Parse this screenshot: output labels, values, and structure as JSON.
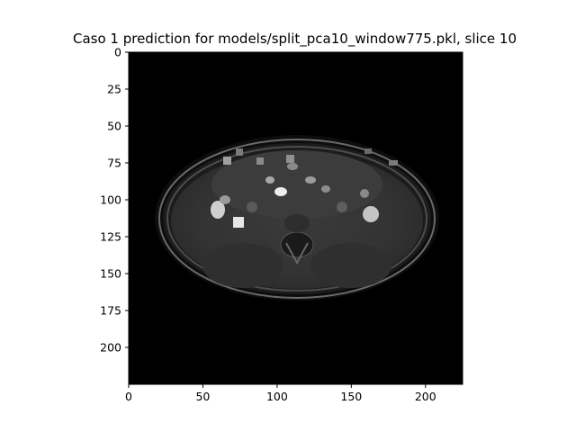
{
  "title": "Caso 1 prediction for models/split_pca10_window775.pkl, slice 10",
  "chart_data": {
    "type": "image",
    "title": "Caso 1 prediction for models/split_pca10_window775.pkl, slice 10",
    "xlim": [
      0,
      225
    ],
    "ylim": [
      225,
      0
    ],
    "x_ticks": [
      0,
      50,
      100,
      150,
      200
    ],
    "y_ticks": [
      0,
      25,
      50,
      75,
      100,
      125,
      150,
      175,
      200
    ],
    "x_tick_labels": [
      "0",
      "50",
      "100",
      "150",
      "200"
    ],
    "y_tick_labels": [
      "0",
      "25",
      "50",
      "75",
      "100",
      "125",
      "150",
      "175",
      "200"
    ],
    "colormap": "gray",
    "content": "axial abdominal MRI slice"
  }
}
